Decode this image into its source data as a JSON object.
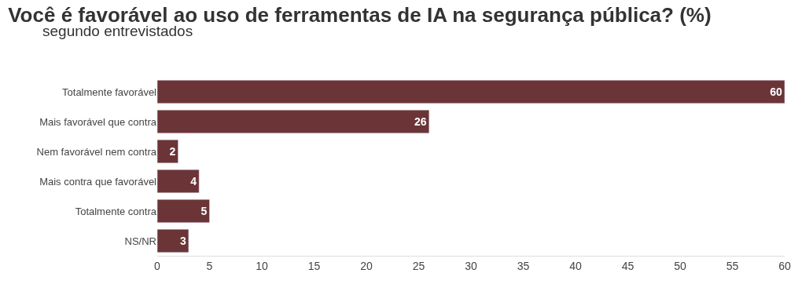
{
  "chart_data": {
    "type": "bar",
    "orientation": "horizontal",
    "title": "Você é favorável ao uso de ferramentas de IA na segurança pública? (%)",
    "subtitle": "segundo entrevistados",
    "categories": [
      "Totalmente favorável",
      "Mais favorável que contra",
      "Nem favorável nem contra",
      "Mais contra que favorável",
      "Totalmente contra",
      "NS/NR"
    ],
    "values": [
      60,
      26,
      2,
      4,
      5,
      3
    ],
    "color": "#6b3538",
    "data_labels": true,
    "xlim": [
      0,
      60
    ],
    "xticks": [
      0,
      5,
      10,
      15,
      20,
      25,
      30,
      35,
      40,
      45,
      50,
      55,
      60
    ],
    "grid": false,
    "legend": false
  }
}
